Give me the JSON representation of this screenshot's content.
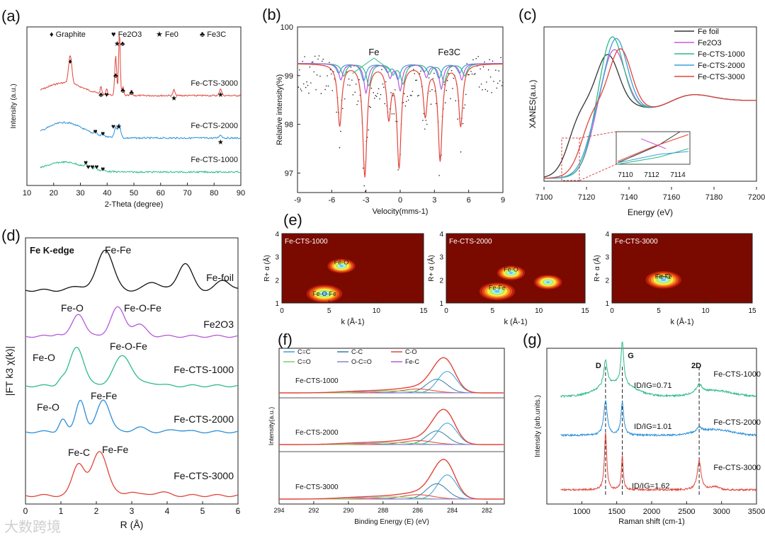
{
  "figure": {
    "watermark": "大数跨境",
    "panels": {
      "a": {
        "label": "(a)",
        "xlabel": "2-Theta (degree)",
        "ylabel": "Intensity (a.u.)",
        "legend": [
          {
            "sym": "♦",
            "text": "Graphite"
          },
          {
            "sym": "♥",
            "text": "Fe2O3"
          },
          {
            "sym": "★",
            "text": "Fe0"
          },
          {
            "sym": "♣",
            "text": "Fe3C"
          }
        ],
        "series": [
          "Fe-CTS-3000",
          "Fe-CTS-2000",
          "Fe-CTS-1000"
        ]
      },
      "b": {
        "label": "(b)",
        "xlabel": "Velocity(mms-1)",
        "ylabel": "Relative intensity(%)",
        "annotations": [
          "Fe",
          "Fe3C"
        ]
      },
      "c": {
        "label": "(c)",
        "xlabel": "Energy (eV)",
        "ylabel": "XANES(a.u.)",
        "legend": [
          "Fe foil",
          "Fe2O3",
          "Fe-CTS-1000",
          "Fe-CTS-2000",
          "Fe-CTS-3000"
        ],
        "inset_ticks": [
          "7110",
          "7112",
          "7114"
        ]
      },
      "d": {
        "label": "(d)",
        "xlabel": "R (Å)",
        "ylabel": "|FT k3 χ(k)|",
        "title": "Fe K-edge",
        "series": [
          "Fe-foil",
          "Fe2O3",
          "Fe-CTS-1000",
          "Fe-CTS-2000",
          "Fe-CTS-3000"
        ],
        "annotations": [
          "Fe-Fe",
          "Fe-O",
          "Fe-O-Fe",
          "Fe-O",
          "Fe-O-Fe",
          "Fe-O",
          "Fe-Fe",
          "Fe-C",
          "Fe-Fe"
        ]
      },
      "e": {
        "label": "(e)",
        "xlabel": "k (Å-1)",
        "ylabel": "R+ α (Å)",
        "maps": [
          {
            "title": "Fe-CTS-1000",
            "notes": [
              "Fe-O-Fe",
              "Fe-O"
            ]
          },
          {
            "title": "Fe-CTS-2000",
            "notes": [
              "Fe-Fe",
              "Fe-O"
            ]
          },
          {
            "title": "Fe-CTS-3000",
            "notes": [
              "Fe-Fe",
              "Fe-C"
            ]
          }
        ]
      },
      "f": {
        "label": "(f)",
        "xlabel": "Binding Energy (E) (eV)",
        "ylabel": "Intensity(a.u.)",
        "legend": [
          "C=C",
          "C-C",
          "C-O",
          "C=O",
          "O-C=O",
          "Fe-C"
        ],
        "series": [
          "Fe-CTS-1000",
          "Fe-CTS-2000",
          "Fe-CTS-3000"
        ]
      },
      "g": {
        "label": "(g)",
        "xlabel": "Raman shift (cm-1)",
        "ylabel": "Intensity (arb.units.)",
        "peaks": [
          "D",
          "G",
          "2D"
        ],
        "series": [
          "Fe-CTS-1000",
          "Fe-CTS-2000",
          "Fe-CTS-3000"
        ],
        "ratios": [
          "ID/IG=0.71",
          "ID/IG=1.01",
          "ID/IG=1.62"
        ]
      }
    }
  },
  "chart_data": [
    {
      "panel": "a",
      "type": "line",
      "xlabel": "2-Theta (degree)",
      "ylabel": "Intensity (a.u.)",
      "xlim": [
        10,
        90
      ],
      "x_ticks": [
        10,
        20,
        30,
        40,
        50,
        60,
        70,
        80,
        90
      ],
      "series": [
        {
          "name": "Fe-CTS-3000",
          "peaks": [
            26.2,
            37.7,
            39.8,
            43.0,
            44.6,
            45.9,
            49.1,
            65.0,
            82.4
          ]
        },
        {
          "name": "Fe-CTS-2000",
          "peaks": [
            35.6,
            38.4,
            43.2,
            44.6,
            82.4
          ]
        },
        {
          "name": "Fe-CTS-1000",
          "peaks": [
            32.0,
            33.8,
            35.6,
            38.4
          ]
        }
      ]
    },
    {
      "panel": "b",
      "type": "line",
      "xlabel": "Velocity(mms-1)",
      "ylabel": "Relative intensity(%)",
      "xlim": [
        -9,
        9
      ],
      "ylim": [
        96.6,
        100
      ],
      "x_ticks": [
        -9,
        -6,
        -3,
        0,
        3,
        6,
        9
      ],
      "y_ticks": [
        97,
        98,
        99,
        100
      ],
      "sextet_lines": [
        -5.3,
        -3.1,
        -1.0,
        -0.1,
        2.2,
        3.5,
        5.3
      ],
      "fit_min": 96.8
    },
    {
      "panel": "c",
      "type": "line",
      "xlabel": "Energy (eV)",
      "ylabel": "XANES(a.u.)",
      "xlim": [
        7100,
        7200
      ],
      "x_ticks": [
        7100,
        7120,
        7140,
        7160,
        7180,
        7200
      ],
      "series": [
        {
          "name": "Fe foil",
          "color": "#333333"
        },
        {
          "name": "Fe2O3",
          "color": "#c95ad8"
        },
        {
          "name": "Fe-CTS-1000",
          "color": "#2dbb86"
        },
        {
          "name": "Fe-CTS-2000",
          "color": "#3aa0d8"
        },
        {
          "name": "Fe-CTS-3000",
          "color": "#e0453a"
        }
      ]
    },
    {
      "panel": "d",
      "type": "line",
      "xlabel": "R (Å)",
      "ylabel": "|FT k3 χ(k)|",
      "xlim": [
        0,
        6
      ],
      "x_ticks": [
        0,
        1,
        2,
        3,
        4,
        5,
        6
      ],
      "series": [
        {
          "name": "Fe-foil",
          "color": "#111111"
        },
        {
          "name": "Fe2O3",
          "color": "#b55ad8"
        },
        {
          "name": "Fe-CTS-1000",
          "color": "#2dbb86"
        },
        {
          "name": "Fe-CTS-2000",
          "color": "#2a8fd8"
        },
        {
          "name": "Fe-CTS-3000",
          "color": "#e0453a"
        }
      ]
    },
    {
      "panel": "e",
      "type": "heatmap",
      "xlabel": "k (Å-1)",
      "ylabel": "R+ α (Å)",
      "xlim": [
        0,
        15
      ],
      "ylim": [
        1,
        4
      ],
      "x_ticks": [
        0,
        5,
        10,
        15
      ],
      "y_ticks": [
        1,
        2,
        3,
        4
      ],
      "maps": [
        {
          "name": "Fe-CTS-1000",
          "maxima": [
            [
              4.5,
              1.4
            ],
            [
              6.3,
              2.6
            ]
          ]
        },
        {
          "name": "Fe-CTS-2000",
          "maxima": [
            [
              5.5,
              1.5
            ],
            [
              7,
              2.3
            ],
            [
              11,
              1.9
            ]
          ]
        },
        {
          "name": "Fe-CTS-3000",
          "maxima": [
            [
              5.5,
              2.0
            ]
          ]
        }
      ]
    },
    {
      "panel": "f",
      "type": "line",
      "xlabel": "Binding Energy (E) (eV)",
      "ylabel": "Intensity(a.u.)",
      "xlim": [
        294,
        281
      ],
      "x_ticks": [
        294,
        292,
        290,
        288,
        286,
        284,
        282
      ],
      "components": [
        {
          "name": "C=C",
          "color": "#3aa0d8",
          "center": 284.3
        },
        {
          "name": "C-C",
          "color": "#2f7fa8",
          "center": 284.8
        },
        {
          "name": "C-O",
          "color": "#e0453a",
          "center": 286.0
        },
        {
          "name": "C=O",
          "color": "#7ccf5a",
          "center": 287.5
        },
        {
          "name": "O-C=O",
          "color": "#8a7fd8",
          "center": 289.5
        },
        {
          "name": "Fe-C",
          "color": "#b55ad8",
          "center": 283.5
        }
      ]
    },
    {
      "panel": "g",
      "type": "line",
      "xlabel": "Raman shift (cm-1)",
      "ylabel": "Intensity (arb.units.)",
      "xlim": [
        500,
        3500
      ],
      "x_ticks": [
        1000,
        1500,
        2000,
        2500,
        3000,
        3500
      ],
      "peak_positions": {
        "D": 1340,
        "G": 1580,
        "2D": 2680
      },
      "series": [
        {
          "name": "Fe-CTS-1000",
          "ID_IG": 0.71,
          "color": "#2dbb86"
        },
        {
          "name": "Fe-CTS-2000",
          "ID_IG": 1.01,
          "color": "#2a8fd8"
        },
        {
          "name": "Fe-CTS-3000",
          "ID_IG": 1.62,
          "color": "#e0453a"
        }
      ]
    }
  ]
}
